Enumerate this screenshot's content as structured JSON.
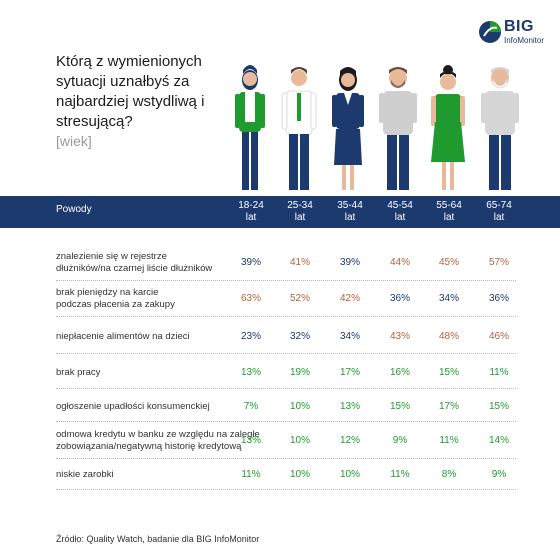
{
  "title": "Którą z wymienionych sytuacji uznałbyś za najbardziej wstydliwą i stresującą?",
  "subtitle": "[wiek]",
  "logo": {
    "text": "BIG",
    "subtext": "InfoMonitor"
  },
  "colors": {
    "header": "#1c3a6e",
    "blue": "#1c3a6e",
    "brown": "#b0643a",
    "green": "#1e9a2e"
  },
  "chart_data": {
    "type": "table",
    "row_header": "Powody",
    "columns": [
      {
        "l1": "18-24",
        "l2": "lat"
      },
      {
        "l1": "25-34",
        "l2": "lat"
      },
      {
        "l1": "35-44",
        "l2": "lat"
      },
      {
        "l1": "45-54",
        "l2": "lat"
      },
      {
        "l1": "55-64",
        "l2": "lat"
      },
      {
        "l1": "65-74",
        "l2": "lat"
      }
    ],
    "rows": [
      {
        "label": [
          "znalezienie się w rejestrze",
          "dłużników/na czarnej liście dłużników"
        ],
        "values": [
          "39%",
          "41%",
          "39%",
          "44%",
          "45%",
          "57%"
        ],
        "colors": [
          "blue",
          "brown",
          "blue",
          "brown",
          "brown",
          "brown"
        ]
      },
      {
        "label": [
          "brak pieniędzy na karcie",
          "podczas płacenia za zakupy"
        ],
        "values": [
          "63%",
          "52%",
          "42%",
          "36%",
          "34%",
          "36%"
        ],
        "colors": [
          "brown",
          "brown",
          "brown",
          "blue",
          "blue",
          "blue"
        ]
      },
      {
        "label": [
          "niepłacenie alimentów na dzieci"
        ],
        "values": [
          "23%",
          "32%",
          "34%",
          "43%",
          "48%",
          "46%"
        ],
        "colors": [
          "blue",
          "blue",
          "blue",
          "brown",
          "brown",
          "brown"
        ]
      },
      {
        "label": [
          "brak pracy"
        ],
        "values": [
          "13%",
          "19%",
          "17%",
          "16%",
          "15%",
          "11%"
        ],
        "colors": [
          "green",
          "green",
          "green",
          "green",
          "green",
          "green"
        ]
      },
      {
        "label": [
          "ogłoszenie upadłości konsumenckiej"
        ],
        "values": [
          "7%",
          "10%",
          "13%",
          "15%",
          "17%",
          "15%"
        ],
        "colors": [
          "green",
          "green",
          "green",
          "green",
          "green",
          "green"
        ]
      },
      {
        "label": [
          "odmowa kredytu w banku ze względu na zaległe",
          "zobowiązania/negatywną historię kredytową"
        ],
        "values": [
          "13%",
          "10%",
          "12%",
          "9%",
          "11%",
          "14%"
        ],
        "colors": [
          "green",
          "green",
          "green",
          "green",
          "green",
          "green"
        ]
      },
      {
        "label": [
          "niskie zarobki"
        ],
        "values": [
          "11%",
          "10%",
          "10%",
          "11%",
          "8%",
          "9%"
        ],
        "colors": [
          "green",
          "green",
          "green",
          "green",
          "green",
          "green"
        ]
      }
    ]
  },
  "footer": "Źródło: Quality Watch, badanie dla BIG InfoMonitor"
}
